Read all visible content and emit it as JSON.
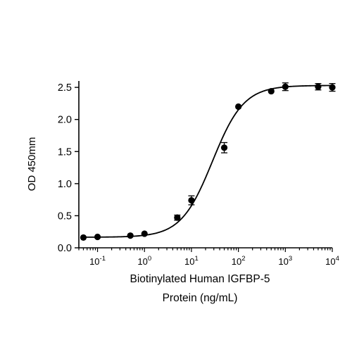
{
  "chart_data": {
    "type": "scatter",
    "title": "",
    "xlabel_line1": "Biotinylated Human IGFBP-5",
    "xlabel_line2": "Protein (ng/mL)",
    "ylabel": "OD 450mm",
    "x_scale": "log",
    "xlim": [
      0.04,
      10000
    ],
    "ylim": [
      0,
      2.6
    ],
    "y_ticks": [
      0.0,
      0.5,
      1.0,
      1.5,
      2.0,
      2.5
    ],
    "y_tick_labels": [
      "0.0",
      "0.5",
      "1.0",
      "1.5",
      "2.0",
      "2.5"
    ],
    "x_ticks": [
      0.1,
      1,
      10,
      100,
      1000,
      10000
    ],
    "x_tick_labels": [
      {
        "base": "10",
        "exp": "-1"
      },
      {
        "base": "10",
        "exp": "0"
      },
      {
        "base": "10",
        "exp": "1"
      },
      {
        "base": "10",
        "exp": "2"
      },
      {
        "base": "10",
        "exp": "3"
      },
      {
        "base": "10",
        "exp": "4"
      }
    ],
    "grid": false,
    "points": [
      {
        "x": 0.05,
        "y": 0.16,
        "err": 0.0
      },
      {
        "x": 0.1,
        "y": 0.17,
        "err": 0.0
      },
      {
        "x": 0.5,
        "y": 0.19,
        "err": 0.0
      },
      {
        "x": 1,
        "y": 0.22,
        "err": 0.0
      },
      {
        "x": 5,
        "y": 0.47,
        "err": 0.04
      },
      {
        "x": 10,
        "y": 0.74,
        "err": 0.07
      },
      {
        "x": 50,
        "y": 1.56,
        "err": 0.08
      },
      {
        "x": 100,
        "y": 2.2,
        "err": 0.0
      },
      {
        "x": 500,
        "y": 2.44,
        "err": 0.0
      },
      {
        "x": 1000,
        "y": 2.51,
        "err": 0.06
      },
      {
        "x": 5000,
        "y": 2.51,
        "err": 0.05
      },
      {
        "x": 10000,
        "y": 2.5,
        "err": 0.06
      }
    ],
    "fit_curve": {
      "bottom": 0.165,
      "top": 2.53,
      "ec50": 28,
      "hill": 1.3
    },
    "colors": {
      "marker": "#000000",
      "line": "#000000"
    }
  }
}
